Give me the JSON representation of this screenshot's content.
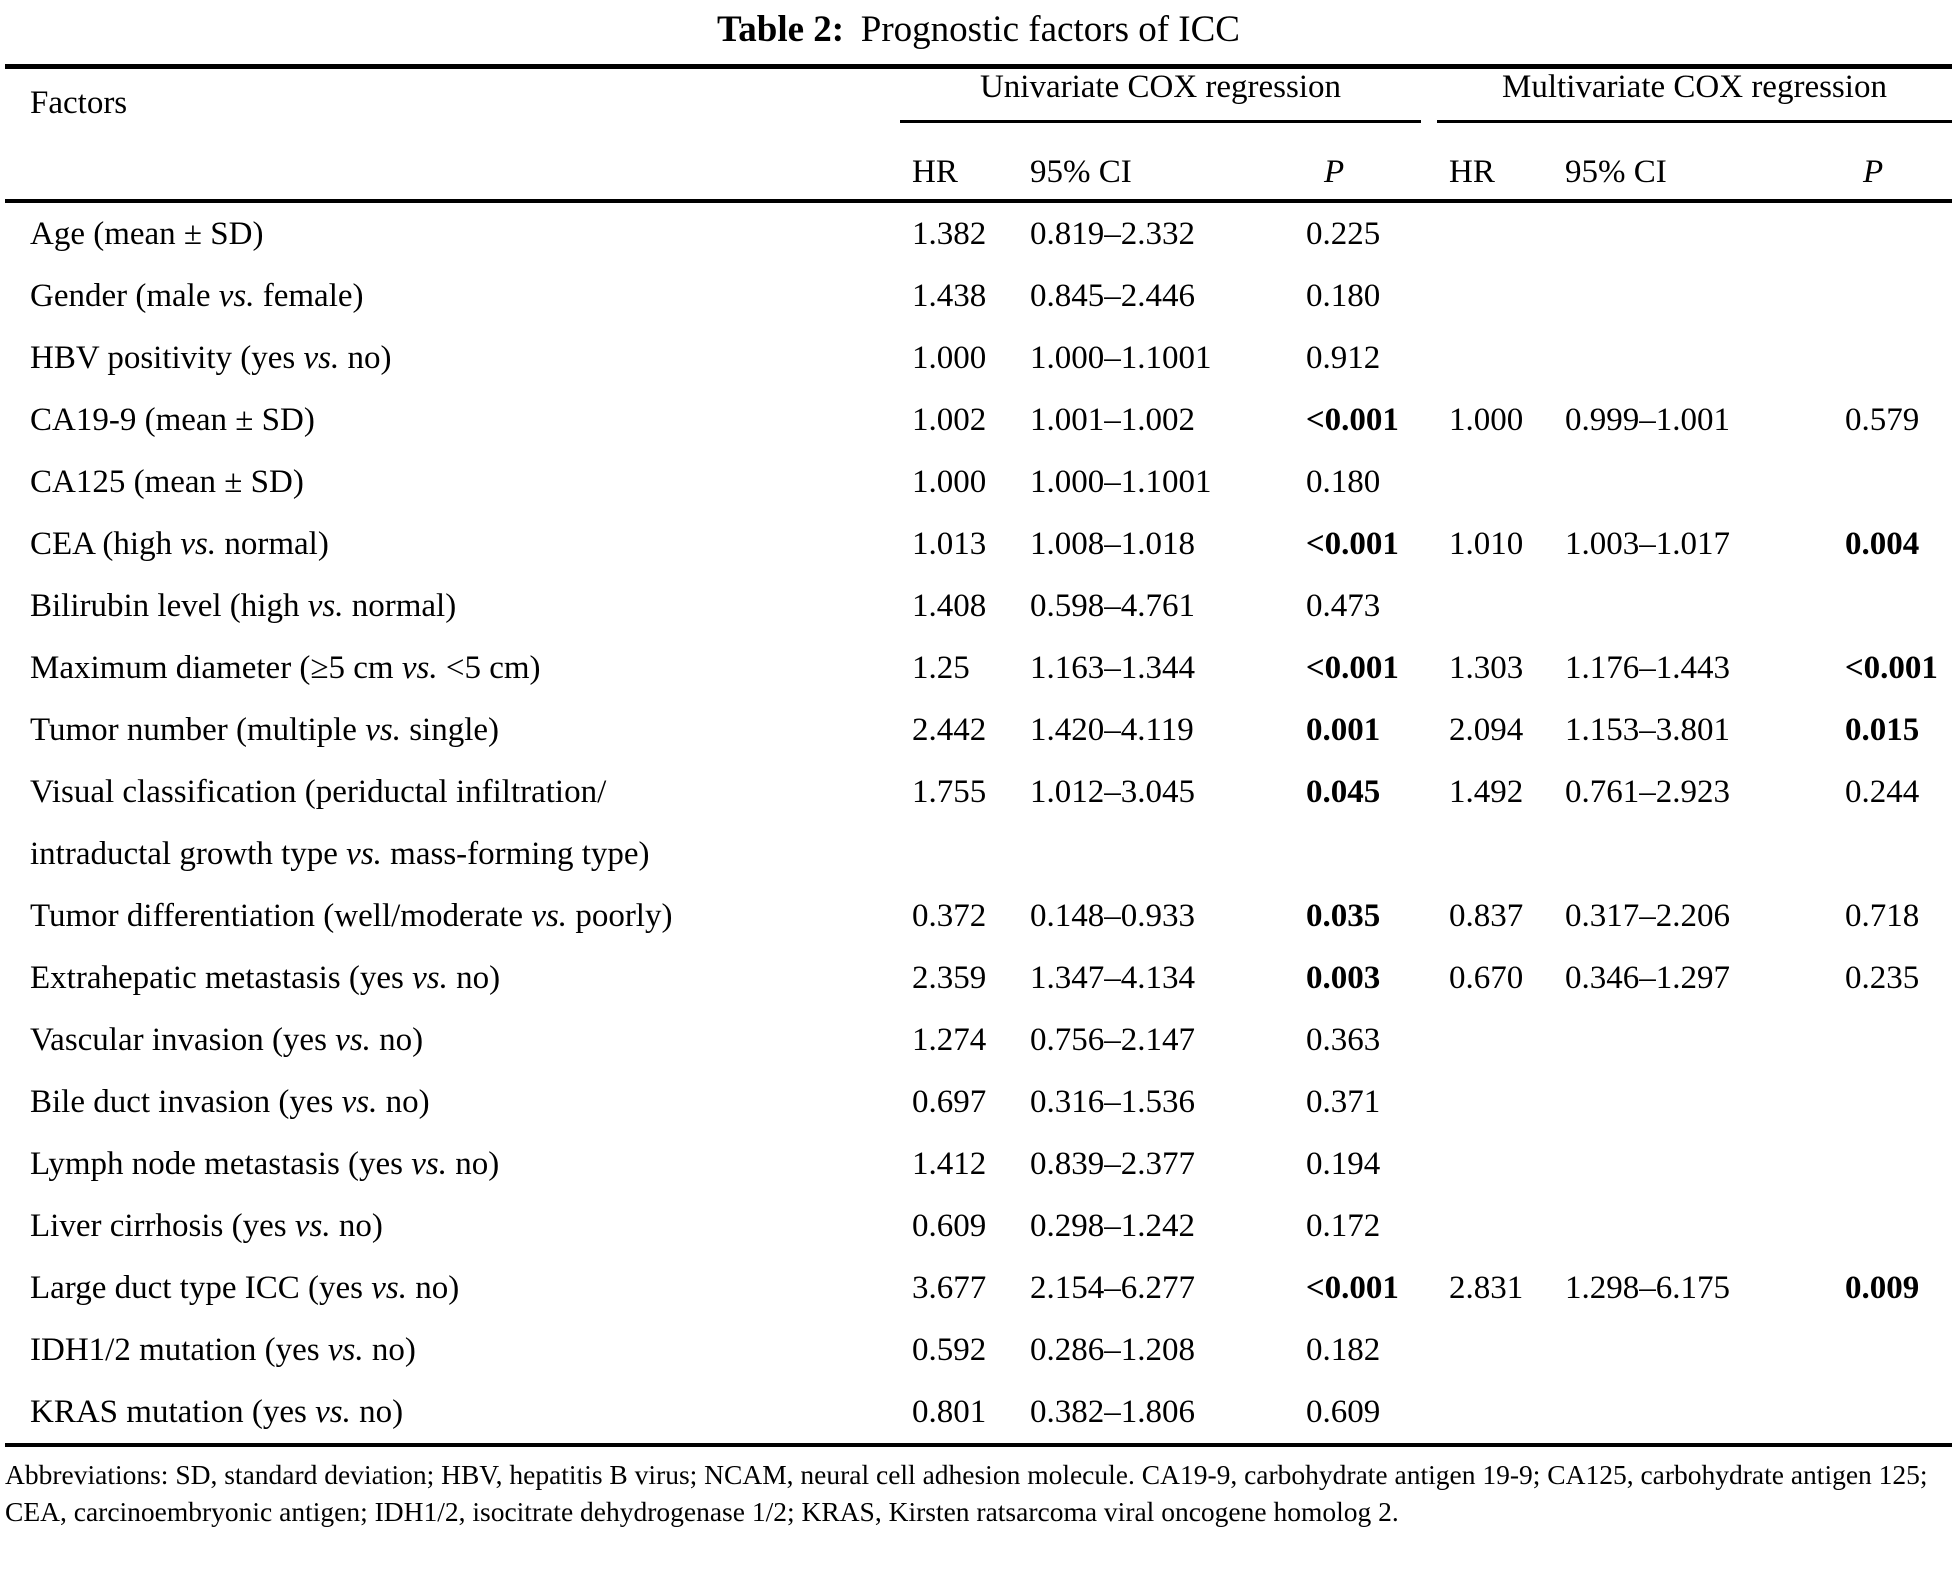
{
  "title": {
    "prefix": "Table 2:",
    "text": "Prognostic factors of ICC"
  },
  "table": {
    "col_factors": "Factors",
    "group_headers": [
      "Univariate COX regression",
      "Multivariate COX regression"
    ],
    "sub_headers": [
      "HR",
      "95% CI",
      "P"
    ],
    "rows": [
      {
        "factor": "Age (mean ± SD)",
        "uni": {
          "hr": "1.382",
          "ci": "0.819–2.332",
          "p": "0.225",
          "p_bold": false
        },
        "multi": null
      },
      {
        "factor": "Gender (male vs. female)",
        "uni": {
          "hr": "1.438",
          "ci": "0.845–2.446",
          "p": "0.180",
          "p_bold": false
        },
        "multi": null
      },
      {
        "factor": "HBV positivity (yes vs. no)",
        "uni": {
          "hr": "1.000",
          "ci": "1.000–1.1001",
          "p": "0.912",
          "p_bold": false
        },
        "multi": null
      },
      {
        "factor": "CA19-9 (mean ± SD)",
        "uni": {
          "hr": "1.002",
          "ci": "1.001–1.002",
          "p": "<0.001",
          "p_bold": true
        },
        "multi": {
          "hr": "1.000",
          "ci": "0.999–1.001",
          "p": "0.579",
          "p_bold": false
        }
      },
      {
        "factor": "CA125 (mean ± SD)",
        "uni": {
          "hr": "1.000",
          "ci": "1.000–1.1001",
          "p": "0.180",
          "p_bold": false
        },
        "multi": null
      },
      {
        "factor": "CEA (high vs. normal)",
        "uni": {
          "hr": "1.013",
          "ci": "1.008–1.018",
          "p": "<0.001",
          "p_bold": true
        },
        "multi": {
          "hr": "1.010",
          "ci": "1.003–1.017",
          "p": "0.004",
          "p_bold": true
        }
      },
      {
        "factor": "Bilirubin level (high vs. normal)",
        "uni": {
          "hr": "1.408",
          "ci": "0.598–4.761",
          "p": "0.473",
          "p_bold": false
        },
        "multi": null
      },
      {
        "factor": "Maximum diameter (≥5 cm vs. <5 cm)",
        "uni": {
          "hr": "1.25",
          "ci": "1.163–1.344",
          "p": "<0.001",
          "p_bold": true
        },
        "multi": {
          "hr": "1.303",
          "ci": "1.176–1.443",
          "p": "<0.001",
          "p_bold": true
        }
      },
      {
        "factor": "Tumor number (multiple vs. single)",
        "uni": {
          "hr": "2.442",
          "ci": "1.420–4.119",
          "p": "0.001",
          "p_bold": true
        },
        "multi": {
          "hr": "2.094",
          "ci": "1.153–3.801",
          "p": "0.015",
          "p_bold": true
        }
      },
      {
        "factor": "Visual classification (periductal infiltration/\nintraductal growth type vs. mass-forming type)",
        "uni": {
          "hr": "1.755",
          "ci": "1.012–3.045",
          "p": "0.045",
          "p_bold": true
        },
        "multi": {
          "hr": "1.492",
          "ci": "0.761–2.923",
          "p": "0.244",
          "p_bold": false
        }
      },
      {
        "factor": "Tumor differentiation (well/moderate vs. poorly)",
        "uni": {
          "hr": "0.372",
          "ci": "0.148–0.933",
          "p": "0.035",
          "p_bold": true
        },
        "multi": {
          "hr": "0.837",
          "ci": "0.317–2.206",
          "p": "0.718",
          "p_bold": false
        }
      },
      {
        "factor": "Extrahepatic metastasis (yes vs. no)",
        "uni": {
          "hr": "2.359",
          "ci": "1.347–4.134",
          "p": "0.003",
          "p_bold": true
        },
        "multi": {
          "hr": "0.670",
          "ci": "0.346–1.297",
          "p": "0.235",
          "p_bold": false
        }
      },
      {
        "factor": "Vascular invasion (yes vs. no)",
        "uni": {
          "hr": "1.274",
          "ci": "0.756–2.147",
          "p": "0.363",
          "p_bold": false
        },
        "multi": null
      },
      {
        "factor": "Bile duct invasion (yes vs. no)",
        "uni": {
          "hr": "0.697",
          "ci": "0.316–1.536",
          "p": "0.371",
          "p_bold": false
        },
        "multi": null
      },
      {
        "factor": "Lymph node metastasis (yes vs. no)",
        "uni": {
          "hr": "1.412",
          "ci": "0.839–2.377",
          "p": "0.194",
          "p_bold": false
        },
        "multi": null
      },
      {
        "factor": "Liver cirrhosis (yes vs. no)",
        "uni": {
          "hr": "0.609",
          "ci": "0.298–1.242",
          "p": "0.172",
          "p_bold": false
        },
        "multi": null
      },
      {
        "factor": "Large duct type ICC (yes vs. no)",
        "uni": {
          "hr": "3.677",
          "ci": "2.154–6.277",
          "p": "<0.001",
          "p_bold": true
        },
        "multi": {
          "hr": "2.831",
          "ci": "1.298–6.175",
          "p": "0.009",
          "p_bold": true
        }
      },
      {
        "factor": "IDH1/2 mutation (yes vs. no)",
        "uni": {
          "hr": "0.592",
          "ci": "0.286–1.208",
          "p": "0.182",
          "p_bold": false
        },
        "multi": null
      },
      {
        "factor": "KRAS mutation (yes vs. no)",
        "uni": {
          "hr": "0.801",
          "ci": "0.382–1.806",
          "p": "0.609",
          "p_bold": false
        },
        "multi": null
      }
    ]
  },
  "footnote": "Abbreviations: SD, standard deviation; HBV, hepatitis B virus; NCAM, neural cell adhesion molecule. CA19-9, carbohydrate antigen 19-9; CA125, carbohydrate antigen 125; CEA, carcinoembryonic antigen; IDH1/2, isocitrate dehydrogenase 1/2; KRAS, Kirsten ratsarcoma viral oncogene homolog 2."
}
